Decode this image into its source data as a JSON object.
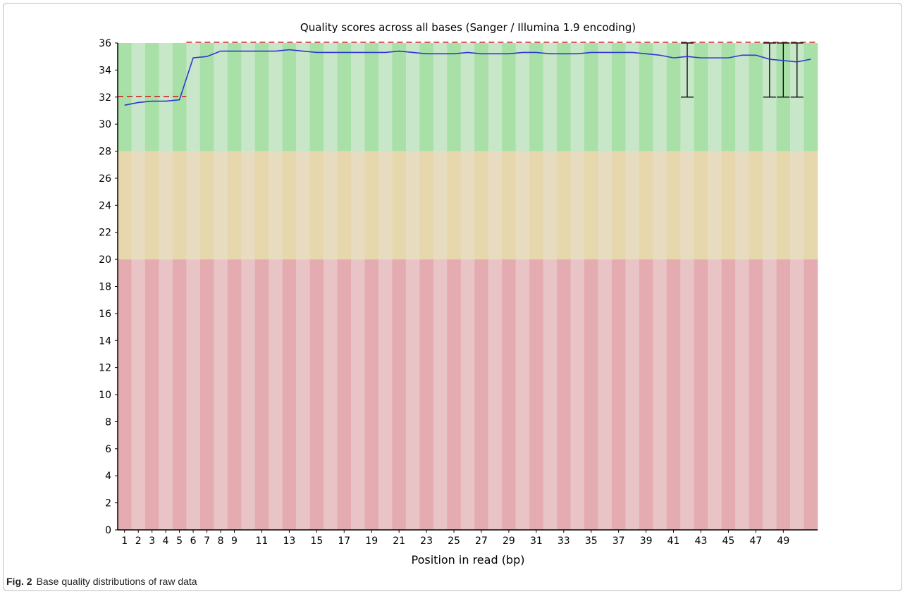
{
  "chart_data": {
    "type": "line",
    "title": "Quality scores across all bases (Sanger / Illumina 1.9 encoding)",
    "xlabel": "Position in read (bp)",
    "ylabel": "",
    "x": [
      1,
      2,
      3,
      4,
      5,
      6,
      7,
      8,
      9,
      10,
      11,
      12,
      13,
      14,
      15,
      16,
      17,
      18,
      19,
      20,
      21,
      22,
      23,
      24,
      25,
      26,
      27,
      28,
      29,
      30,
      31,
      32,
      33,
      34,
      35,
      36,
      37,
      38,
      39,
      40,
      41,
      42,
      43,
      44,
      45,
      46,
      47,
      48,
      49,
      50,
      51
    ],
    "x_tick_labels": [
      "1",
      "2",
      "3",
      "4",
      "5",
      "6",
      "7",
      "8",
      "9",
      "11",
      "13",
      "15",
      "17",
      "19",
      "21",
      "23",
      "25",
      "27",
      "29",
      "31",
      "33",
      "35",
      "37",
      "39",
      "41",
      "43",
      "45",
      "47",
      "49"
    ],
    "x_tick_positions": [
      1,
      2,
      3,
      4,
      5,
      6,
      7,
      8,
      9,
      11,
      13,
      15,
      17,
      19,
      21,
      23,
      25,
      27,
      29,
      31,
      33,
      35,
      37,
      39,
      41,
      43,
      45,
      47,
      49
    ],
    "ylim": [
      0,
      36
    ],
    "y_ticks": [
      0,
      2,
      4,
      6,
      8,
      10,
      12,
      14,
      16,
      18,
      20,
      22,
      24,
      26,
      28,
      30,
      32,
      34,
      36
    ],
    "grid": false,
    "zones": [
      {
        "from": 28,
        "to": 36,
        "color": "#a8e0a8",
        "color_alt": "#c8e6c8"
      },
      {
        "from": 20,
        "to": 28,
        "color": "#e6d8ac",
        "color_alt": "#e8dcc0"
      },
      {
        "from": 0,
        "to": 20,
        "color": "#e4acb0",
        "color_alt": "#e8c4c6"
      }
    ],
    "series": [
      {
        "type": "line",
        "color": "#2a3bd0",
        "values": [
          31.4,
          31.6,
          31.7,
          31.7,
          31.8,
          34.9,
          35.0,
          35.4,
          35.4,
          35.4,
          35.4,
          35.4,
          35.5,
          35.4,
          35.3,
          35.3,
          35.3,
          35.3,
          35.3,
          35.3,
          35.4,
          35.3,
          35.2,
          35.2,
          35.2,
          35.3,
          35.2,
          35.2,
          35.2,
          35.3,
          35.3,
          35.2,
          35.2,
          35.2,
          35.3,
          35.3,
          35.3,
          35.3,
          35.2,
          35.1,
          34.9,
          35.0,
          34.9,
          34.9,
          34.9,
          35.1,
          35.1,
          34.8,
          34.7,
          34.6,
          34.8
        ]
      },
      {
        "type": "dashed-step",
        "color": "#c82828",
        "values": [
          32,
          32,
          32,
          32,
          32,
          36,
          36,
          36,
          36,
          36,
          36,
          36,
          36,
          36,
          36,
          36,
          36,
          36,
          36,
          36,
          36,
          36,
          36,
          36,
          36,
          36,
          36,
          36,
          36,
          36,
          36,
          36,
          36,
          36,
          36,
          36,
          36,
          36,
          36,
          36,
          36,
          36,
          36,
          36,
          36,
          36,
          36,
          36,
          36,
          36,
          36
        ]
      }
    ],
    "error_bars": [
      {
        "x": 42,
        "low": 32,
        "high": 36
      },
      {
        "x": 48,
        "low": 32,
        "high": 36
      },
      {
        "x": 49,
        "low": 32,
        "high": 36
      },
      {
        "x": 50,
        "low": 32,
        "high": 36
      }
    ]
  },
  "caption": {
    "label": "Fig. 2",
    "text": "Base quality distributions of raw data"
  }
}
